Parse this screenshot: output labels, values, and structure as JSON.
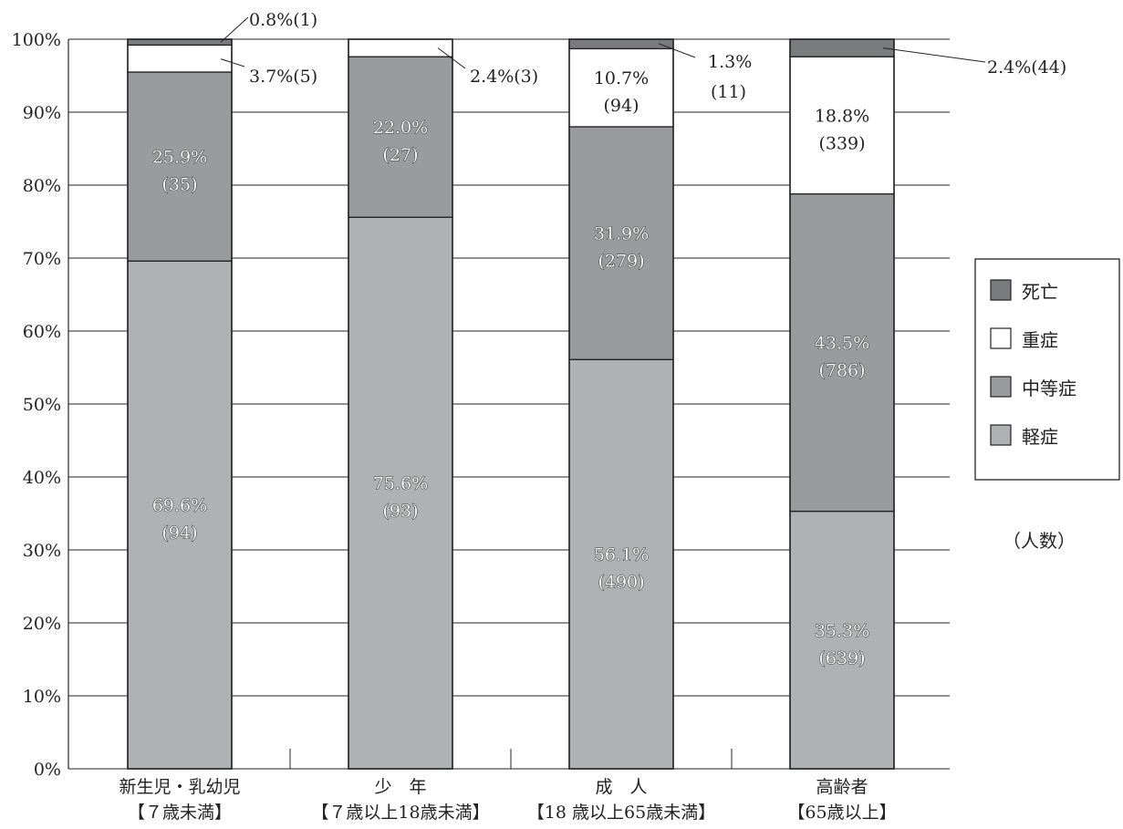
{
  "chart_data": {
    "type": "bar",
    "stacked": true,
    "percent": true,
    "categories": [
      {
        "line1": "新生児・乳幼児",
        "line2": "【７歳未満】"
      },
      {
        "line1": "少　年",
        "line2": "【７歳以上18歳未満】"
      },
      {
        "line1": "成　人",
        "line2": "【18 歳以上65歳未満】"
      },
      {
        "line1": "高齢者",
        "line2": "【65歳以上】"
      }
    ],
    "yticks": [
      "0%",
      "10%",
      "20%",
      "30%",
      "40%",
      "50%",
      "60%",
      "70%",
      "80%",
      "90%",
      "100%"
    ],
    "ylim": [
      0,
      100
    ],
    "series": [
      {
        "name": "軽症",
        "color": "#b0b1b5",
        "values": [
          69.6,
          75.6,
          56.1,
          35.3
        ],
        "counts": [
          "(94)",
          "(93)",
          "(490)",
          "(639)"
        ],
        "labels": [
          "69.6%",
          "75.6%",
          "56.1%",
          "35.3%"
        ]
      },
      {
        "name": "中等症",
        "color": "#9a9b9e",
        "values": [
          25.9,
          22.0,
          31.9,
          43.5
        ],
        "counts": [
          "(35)",
          "(27)",
          "(279)",
          "(786)"
        ],
        "labels": [
          "25.9%",
          "22.0%",
          "31.9%",
          "43.5%"
        ]
      },
      {
        "name": "重症",
        "color": "#ffffff",
        "values": [
          3.7,
          2.4,
          10.7,
          18.8
        ],
        "counts": [
          "(5)",
          "(3)",
          "(94)",
          "(339)"
        ],
        "labels": [
          "3.7%(5)",
          "2.4%(3)",
          "10.7%",
          "18.8%"
        ]
      },
      {
        "name": "死亡",
        "color": "#7a7b7e",
        "values": [
          0.8,
          0.0,
          1.3,
          2.4
        ],
        "counts": [
          "(1)",
          "",
          "(11)",
          "(44)"
        ],
        "labels": [
          "0.8%(1)",
          "",
          "1.3%",
          "2.4%(44)"
        ]
      }
    ],
    "legend_order": [
      "死亡",
      "重症",
      "中等症",
      "軽症"
    ],
    "legend_position": "right",
    "grid": true,
    "unit_note": "（人数）"
  }
}
